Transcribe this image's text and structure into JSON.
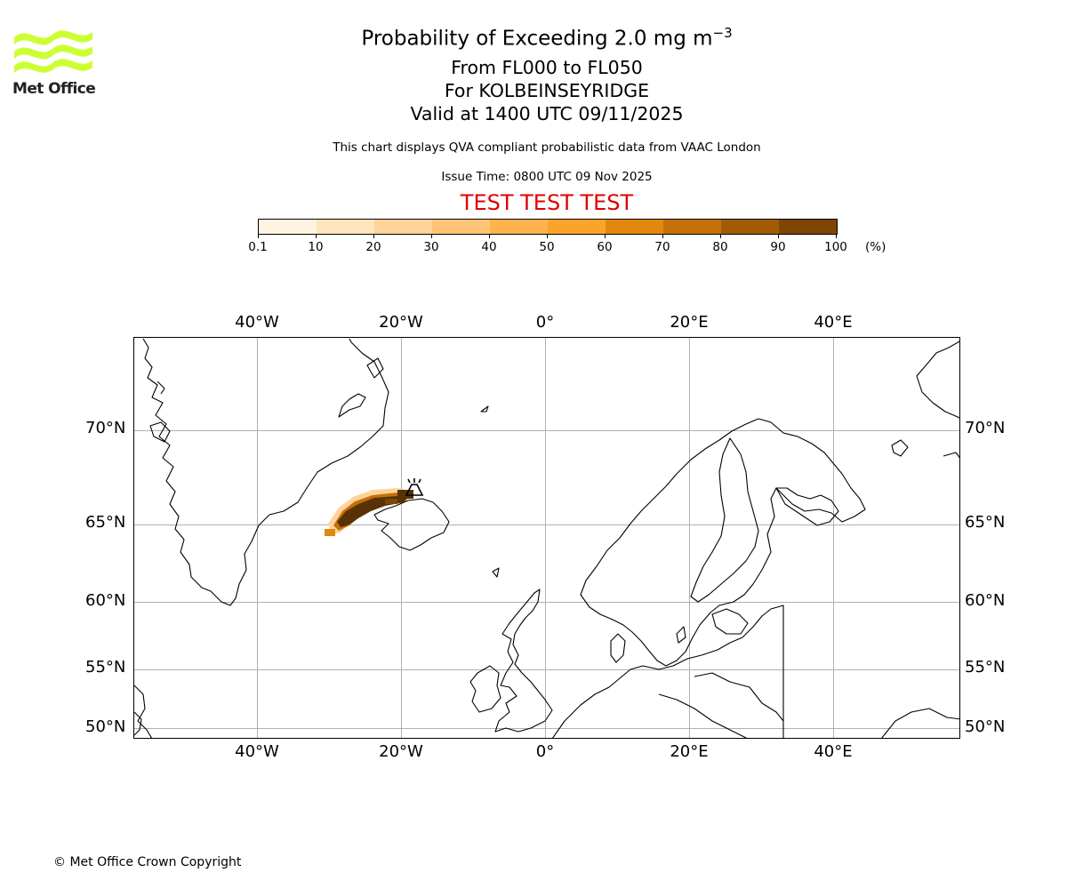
{
  "logo": {
    "text": "Met Office",
    "icon": "met-office-wave-logo",
    "color": "#ccff33"
  },
  "header": {
    "title": "Probability of Exceeding 2.0 mg m",
    "title_superscript": "−3",
    "flight_levels": "From FL000 to FL050",
    "location": "For KOLBEINSEYRIDGE",
    "valid_time": "Valid at 1400 UTC 09/11/2025",
    "description": "This chart displays QVA compliant probabilistic data from VAAC London",
    "issue_time": "Issue Time: 0800 UTC 09 Nov 2025",
    "test_banner": "TEST TEST TEST"
  },
  "colorbar": {
    "ticks": [
      "0.1",
      "10",
      "20",
      "30",
      "40",
      "50",
      "60",
      "70",
      "80",
      "90",
      "100"
    ],
    "unit": "(%)",
    "colors": [
      "#fff4e2",
      "#ffe4bc",
      "#ffd39a",
      "#ffc476",
      "#ffb34f",
      "#fca32a",
      "#e2880f",
      "#c47107",
      "#a15b05",
      "#7d4604",
      "#573206"
    ]
  },
  "map": {
    "top_lon_labels": [
      "40°W",
      "20°W",
      "0°",
      "20°E",
      "40°E"
    ],
    "bottom_lon_labels": [
      "40°W",
      "20°W",
      "0°",
      "20°E",
      "40°E"
    ],
    "left_lat_labels": [
      "70°N",
      "65°N",
      "60°N",
      "55°N",
      "50°N"
    ],
    "right_lat_labels": [
      "70°N",
      "65°N",
      "60°N",
      "55°N",
      "50°N"
    ],
    "volcano_icon": "volcano-icon",
    "gridline_color": "#b0b0b0"
  },
  "footer": {
    "copyright": "© Met Office Crown Copyright"
  }
}
